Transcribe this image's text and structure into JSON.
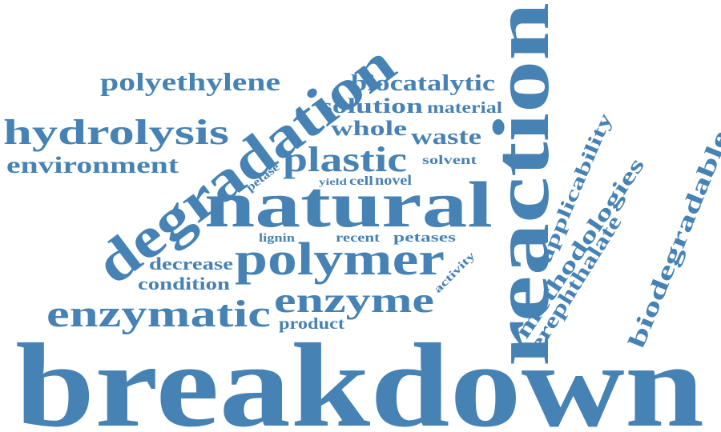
{
  "word_cloud": {
    "color": "#4682b4",
    "words": [
      "breakdown",
      "reaction",
      "natural",
      "degradation",
      "polymer",
      "plastic",
      "enzymatic",
      "enzyme",
      "hydrolysis",
      "polyethylene",
      "environment",
      "biocatalytic",
      "solution",
      "material",
      "whole",
      "waste",
      "solvent",
      "petase",
      "yield",
      "cell",
      "novel",
      "lignin",
      "recent",
      "petases",
      "decrease",
      "condition",
      "product",
      "activity",
      "applicability",
      "methodologies",
      "terephthalate",
      "biodegradable"
    ]
  }
}
